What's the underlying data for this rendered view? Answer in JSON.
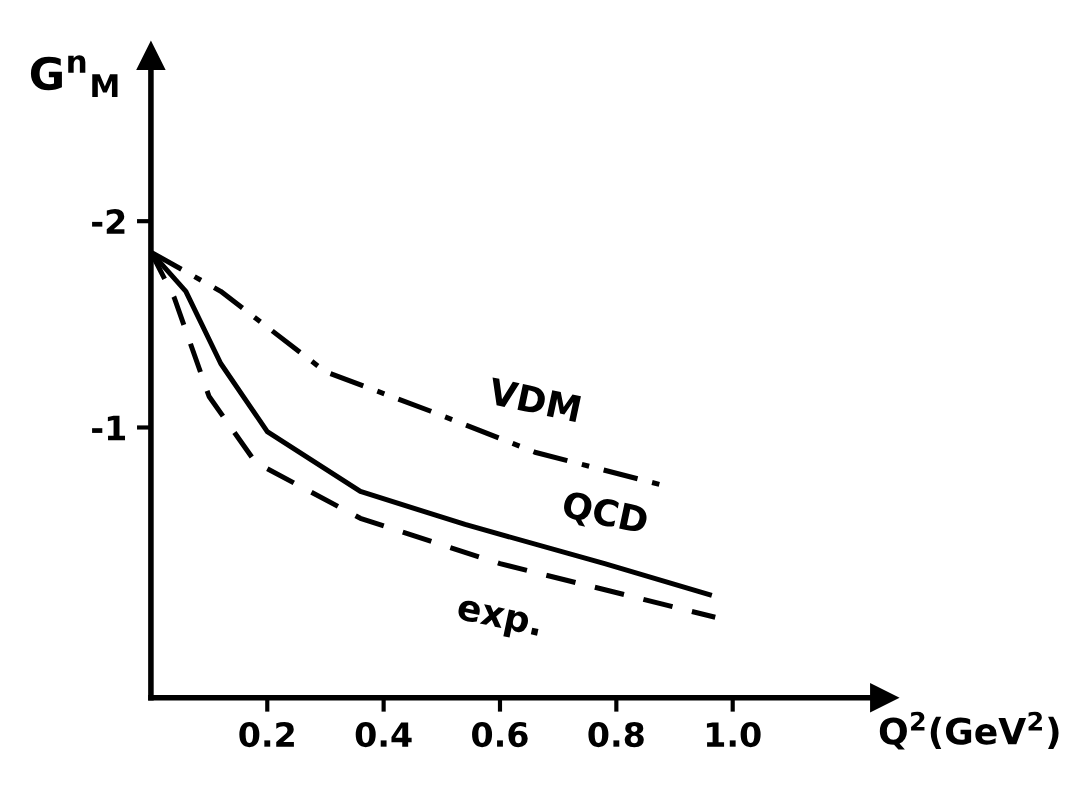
{
  "chart_data": {
    "type": "line",
    "xlabel": "Q$^{2}$(GeV$^{2}$)",
    "ylabel": "G$^{n}$$_{M}$",
    "xlim": [
      0,
      1.26
    ],
    "ylim": [
      0.31,
      -2.8
    ],
    "xticks": [
      0.2,
      0.4,
      0.6,
      0.8,
      {
        "value": 1.0,
        "label": "1.0"
      }
    ],
    "yticks": [
      -2,
      -1
    ],
    "grid": false,
    "legend": false,
    "marker": "none",
    "series": [
      {
        "name": "VDM",
        "color": "#000000",
        "line_style": "dashdot",
        "x": [
          0,
          0.12,
          0.3,
          0.48,
          0.66,
          0.88
        ],
        "values": [
          -1.85,
          -1.66,
          -1.27,
          -1.08,
          -0.88,
          -0.72
        ]
      },
      {
        "name": "QCD",
        "color": "#000000",
        "line_style": "solid",
        "x": [
          0,
          0.06,
          0.12,
          0.2,
          0.36,
          0.54,
          0.78,
          0.96
        ],
        "values": [
          -1.85,
          -1.66,
          -1.31,
          -0.98,
          -0.69,
          -0.53,
          -0.34,
          -0.19
        ]
      },
      {
        "name": "exp.",
        "color": "#000000",
        "line_style": "dashed",
        "x": [
          0,
          0.04,
          0.1,
          0.18,
          0.36,
          0.6,
          0.97
        ],
        "values": [
          -1.85,
          -1.63,
          -1.15,
          -0.83,
          -0.56,
          -0.34,
          -0.08
        ]
      }
    ]
  }
}
